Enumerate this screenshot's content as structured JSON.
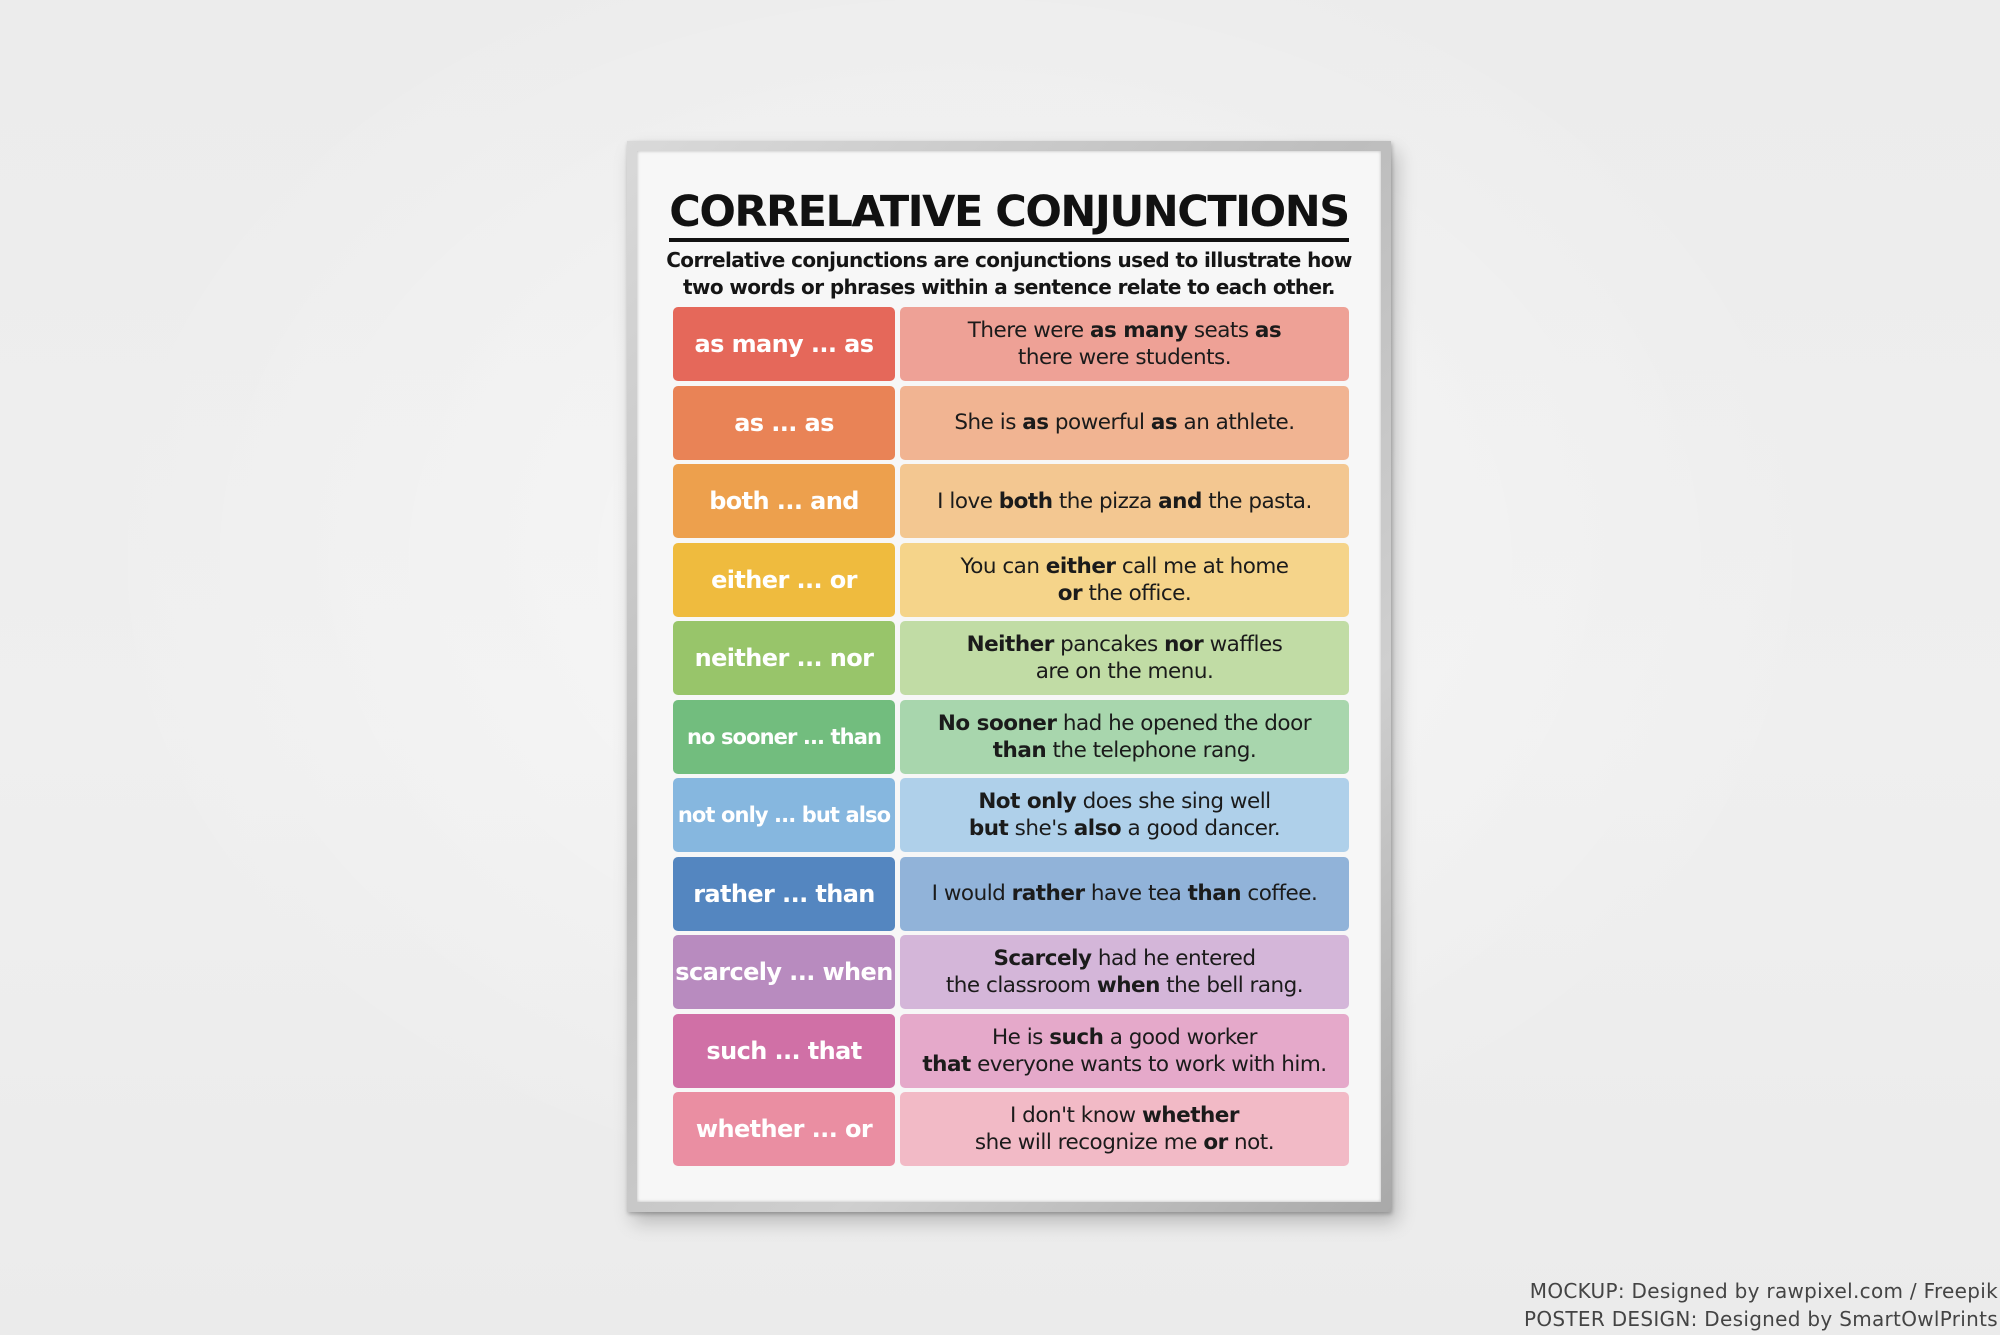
{
  "poster": {
    "title": "CORRELATIVE CONJUNCTIONS",
    "subtitle": "Correlative conjunctions are conjunctions used to illustrate how two words or phrases within a sentence relate to each other.",
    "rows": [
      {
        "term": "as many ... as",
        "term_color": "#e5685a",
        "example_color": "#eea196",
        "lines": [
          [
            {
              "t": "There were "
            },
            {
              "t": "as many",
              "b": true
            },
            {
              "t": " seats "
            },
            {
              "t": "as",
              "b": true
            }
          ],
          [
            {
              "t": "there were students."
            }
          ]
        ]
      },
      {
        "term": "as ... as",
        "term_color": "#e98356",
        "example_color": "#f1b492",
        "lines": [
          [
            {
              "t": "She is "
            },
            {
              "t": "as",
              "b": true
            },
            {
              "t": " powerful "
            },
            {
              "t": "as",
              "b": true
            },
            {
              "t": " an athlete."
            }
          ]
        ]
      },
      {
        "term": "both ... and",
        "term_color": "#eda04d",
        "example_color": "#f3c791",
        "lines": [
          [
            {
              "t": "I love "
            },
            {
              "t": "both",
              "b": true
            },
            {
              "t": " the pizza "
            },
            {
              "t": "and",
              "b": true
            },
            {
              "t": " the pasta."
            }
          ]
        ]
      },
      {
        "term": "either ... or",
        "term_color": "#efbb3e",
        "example_color": "#f5d48a",
        "lines": [
          [
            {
              "t": "You can "
            },
            {
              "t": "either",
              "b": true
            },
            {
              "t": " call me at home"
            }
          ],
          [
            {
              "t": "or",
              "b": true
            },
            {
              "t": " the office."
            }
          ]
        ]
      },
      {
        "term": "neither ... nor",
        "term_color": "#98c56a",
        "example_color": "#c1dca5",
        "lines": [
          [
            {
              "t": "Neither",
              "b": true
            },
            {
              "t": " pancakes "
            },
            {
              "t": "nor",
              "b": true
            },
            {
              "t": " waffles"
            }
          ],
          [
            {
              "t": "are on the menu."
            }
          ]
        ]
      },
      {
        "term": "no sooner ... than",
        "term_color": "#72bd7e",
        "example_color": "#a8d6ad",
        "small": true,
        "lines": [
          [
            {
              "t": "No sooner",
              "b": true
            },
            {
              "t": " had he opened the door"
            }
          ],
          [
            {
              "t": "than",
              "b": true
            },
            {
              "t": " the telephone rang."
            }
          ]
        ]
      },
      {
        "term": "not only ... but also",
        "term_color": "#86b7df",
        "example_color": "#afd0ea",
        "small": true,
        "lines": [
          [
            {
              "t": "Not only",
              "b": true
            },
            {
              "t": " does she sing well"
            }
          ],
          [
            {
              "t": "but",
              "b": true
            },
            {
              "t": " she's "
            },
            {
              "t": "also",
              "b": true
            },
            {
              "t": " a good dancer."
            }
          ]
        ]
      },
      {
        "term": "rather ... than",
        "term_color": "#5486c0",
        "example_color": "#91b3d9",
        "lines": [
          [
            {
              "t": "I would "
            },
            {
              "t": "rather",
              "b": true
            },
            {
              "t": " have tea "
            },
            {
              "t": "than",
              "b": true
            },
            {
              "t": " coffee."
            }
          ]
        ]
      },
      {
        "term": "scarcely ... when",
        "term_color": "#b88bbf",
        "example_color": "#d4b6d9",
        "lines": [
          [
            {
              "t": "Scarcely",
              "b": true
            },
            {
              "t": " had he entered"
            }
          ],
          [
            {
              "t": "the classroom "
            },
            {
              "t": "when",
              "b": true
            },
            {
              "t": " the bell rang."
            }
          ]
        ]
      },
      {
        "term": "such ... that",
        "term_color": "#d070a6",
        "example_color": "#e5a9ca",
        "lines": [
          [
            {
              "t": "He is "
            },
            {
              "t": "such",
              "b": true
            },
            {
              "t": " a good worker"
            }
          ],
          [
            {
              "t": "that",
              "b": true
            },
            {
              "t": " everyone wants to work with him."
            }
          ]
        ]
      },
      {
        "term": "whether ... or",
        "term_color": "#ea8ea2",
        "example_color": "#f2bac6",
        "lines": [
          [
            {
              "t": "I don't know "
            },
            {
              "t": "whether",
              "b": true
            }
          ],
          [
            {
              "t": "she will recognize me "
            },
            {
              "t": "or",
              "b": true
            },
            {
              "t": " not."
            }
          ]
        ]
      }
    ]
  },
  "credits": {
    "mockup": "MOCKUP: Designed by rawpixel.com / Freepik",
    "design": "POSTER DESIGN: Designed by SmartOwlPrints"
  }
}
